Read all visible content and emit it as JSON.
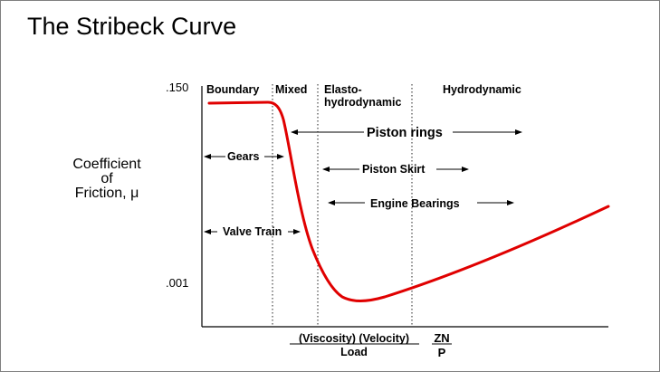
{
  "title": "The Stribeck Curve",
  "y_axis": {
    "label_lines": [
      "Coefficient",
      "of",
      "Friction, μ"
    ],
    "ticks": [
      ".150",
      ".001"
    ]
  },
  "x_axis": {
    "numerator": "(Viscosity) (Velocity)",
    "denominator": "Load",
    "symbol_numerator": "ZN",
    "symbol_denominator": "P"
  },
  "regions": {
    "boundary": "Boundary",
    "mixed": "Mixed",
    "elasto_line1": "Elasto-",
    "elasto_line2": "hydrodynamic",
    "hydrodynamic": "Hydrodynamic"
  },
  "applications": {
    "piston_rings": "Piston rings",
    "gears": "Gears",
    "piston_skirt": "Piston Skirt",
    "engine_bearings": "Engine Bearings",
    "valve_train": "Valve Train"
  },
  "colors": {
    "curve": "#e00000",
    "axis": "#000000",
    "divider": "#555555"
  }
}
